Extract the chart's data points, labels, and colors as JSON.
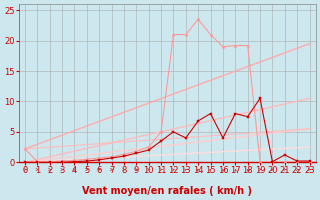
{
  "background_color": "#cce8ee",
  "grid_color": "#aaaaaa",
  "xlabel": "Vent moyen/en rafales ( km/h )",
  "xlabel_color": "#cc0000",
  "xlabel_fontsize": 7,
  "tick_color": "#cc0000",
  "tick_fontsize": 6,
  "xlim": [
    -0.5,
    23.5
  ],
  "ylim": [
    0,
    26
  ],
  "yticks": [
    0,
    5,
    10,
    15,
    20,
    25
  ],
  "xticks": [
    0,
    1,
    2,
    3,
    4,
    5,
    6,
    7,
    8,
    9,
    10,
    11,
    12,
    13,
    14,
    15,
    16,
    17,
    18,
    19,
    20,
    21,
    22,
    23
  ],
  "lines": [
    {
      "x": [
        0,
        1,
        2,
        3,
        4,
        5,
        6,
        7,
        8,
        9,
        10,
        11,
        12,
        13,
        14,
        15,
        16,
        17,
        18,
        19,
        20,
        21,
        22,
        23
      ],
      "y": [
        2.2,
        0.1,
        0.1,
        0.2,
        0.3,
        0.5,
        0.7,
        0.9,
        1.3,
        1.8,
        2.5,
        5.0,
        21.0,
        21.0,
        23.5,
        21.0,
        19.0,
        19.2,
        19.2,
        0.1,
        0.1,
        0.1,
        0.1,
        0.1
      ],
      "color": "#ff9999",
      "lw": 0.8,
      "marker": "o",
      "ms": 1.8,
      "zorder": 3
    },
    {
      "x": [
        0,
        1,
        2,
        3,
        4,
        5,
        6,
        7,
        8,
        9,
        10,
        11,
        12,
        13,
        14,
        15,
        16,
        17,
        18,
        19,
        20,
        21,
        22,
        23
      ],
      "y": [
        0.0,
        0.0,
        0.0,
        0.0,
        0.1,
        0.2,
        0.4,
        0.7,
        1.0,
        1.5,
        2.0,
        3.5,
        5.0,
        4.0,
        6.8,
        8.0,
        4.0,
        8.0,
        7.5,
        10.5,
        0.1,
        1.2,
        0.2,
        0.2
      ],
      "color": "#cc0000",
      "lw": 0.8,
      "marker": "s",
      "ms": 2.0,
      "zorder": 4
    },
    {
      "x": [
        0,
        23
      ],
      "y": [
        2.2,
        19.5
      ],
      "color": "#ffaaaa",
      "lw": 1.0,
      "marker": null,
      "ms": 0,
      "zorder": 2
    },
    {
      "x": [
        0,
        23
      ],
      "y": [
        0.0,
        10.5
      ],
      "color": "#ffbbbb",
      "lw": 1.0,
      "marker": null,
      "ms": 0,
      "zorder": 2
    },
    {
      "x": [
        0,
        23
      ],
      "y": [
        0.0,
        5.5
      ],
      "color": "#ffcccc",
      "lw": 1.0,
      "marker": null,
      "ms": 0,
      "zorder": 2
    },
    {
      "x": [
        0,
        23
      ],
      "y": [
        0.0,
        2.5
      ],
      "color": "#ffdddd",
      "lw": 1.0,
      "marker": null,
      "ms": 0,
      "zorder": 2
    },
    {
      "x": [
        0,
        23
      ],
      "y": [
        2.2,
        5.5
      ],
      "color": "#ffbbbb",
      "lw": 0.8,
      "marker": null,
      "ms": 0,
      "zorder": 2
    }
  ],
  "wind_arrows_color": "#cc3333",
  "wind_arrows_x": [
    0,
    1,
    2,
    3,
    4,
    5,
    6,
    7,
    8,
    9,
    10,
    11,
    12,
    13,
    14,
    15,
    16,
    17,
    18,
    19,
    20,
    21,
    22,
    23
  ],
  "wind_arrows_angle": [
    90,
    90,
    90,
    90,
    90,
    90,
    90,
    90,
    90,
    90,
    100,
    110,
    120,
    130,
    145,
    160,
    180,
    190,
    200,
    90,
    90,
    90,
    90,
    90
  ]
}
